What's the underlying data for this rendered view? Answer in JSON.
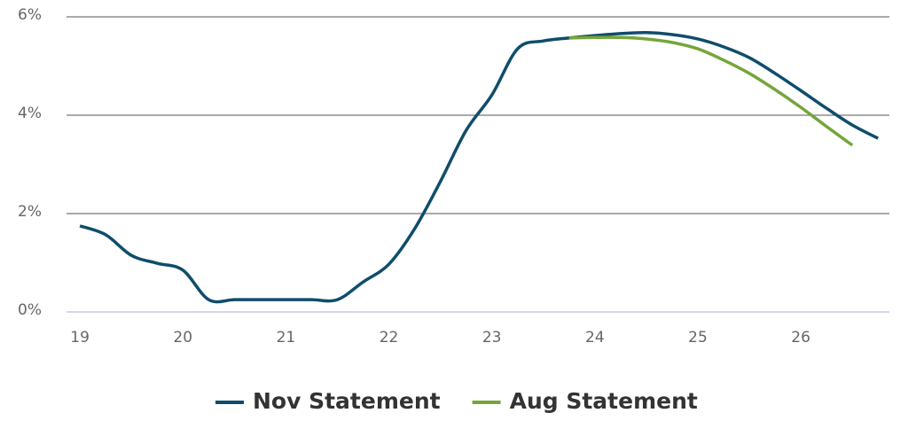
{
  "chart_data": {
    "type": "line",
    "x": [
      19,
      19.25,
      19.5,
      19.75,
      20,
      20.25,
      20.5,
      20.75,
      21,
      21.25,
      21.5,
      21.75,
      22,
      22.25,
      22.5,
      22.75,
      23,
      23.25,
      23.5,
      23.75,
      24,
      24.25,
      24.5,
      24.75,
      25,
      25.25,
      25.5,
      25.75,
      26,
      26.25,
      26.5,
      26.75
    ],
    "series": [
      {
        "name": "Nov Statement",
        "color": "#0f4d6b",
        "values": [
          1.75,
          1.57,
          1.15,
          0.99,
          0.85,
          0.25,
          0.25,
          0.25,
          0.25,
          0.25,
          0.25,
          0.61,
          0.97,
          1.69,
          2.65,
          3.69,
          4.41,
          5.35,
          5.51,
          5.57,
          5.62,
          5.66,
          5.68,
          5.64,
          5.55,
          5.39,
          5.17,
          4.85,
          4.5,
          4.14,
          3.8,
          3.53
        ]
      },
      {
        "name": "Aug Statement",
        "color": "#76a53a",
        "values": [
          null,
          null,
          null,
          null,
          null,
          null,
          null,
          null,
          null,
          null,
          null,
          null,
          null,
          null,
          null,
          null,
          null,
          null,
          null,
          5.57,
          5.58,
          5.58,
          5.55,
          5.48,
          5.35,
          5.12,
          4.85,
          4.52,
          4.16,
          3.77,
          3.39,
          null
        ]
      }
    ],
    "xlim": [
      18.87,
      26.86
    ],
    "xticks": [
      19,
      20,
      21,
      22,
      23,
      24,
      25,
      26
    ],
    "ylim": [
      0,
      6
    ],
    "yticks": [
      {
        "value": 0,
        "label": "0%"
      },
      {
        "value": 2,
        "label": "2%"
      },
      {
        "value": 4,
        "label": "4%"
      },
      {
        "value": 6,
        "label": "6%"
      }
    ],
    "grid": true,
    "legend": "bottom"
  }
}
